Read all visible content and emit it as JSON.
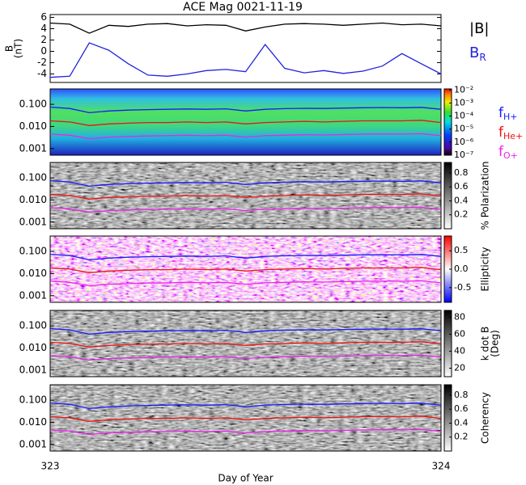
{
  "chart_data": [
    {
      "type": "line",
      "title": "ACE Mag 0021-11-19",
      "ylabel_lines": [
        "B",
        "(nT)"
      ],
      "x": [
        323,
        323.05,
        323.1,
        323.15,
        323.2,
        323.25,
        323.3,
        323.35,
        323.4,
        323.45,
        323.5,
        323.55,
        323.6,
        323.65,
        323.7,
        323.75,
        323.8,
        323.85,
        323.9,
        323.95,
        324
      ],
      "xlim": [
        323,
        324
      ],
      "ylim": [
        -5.5,
        6.5
      ],
      "yticks": [
        -4,
        -2,
        0,
        2,
        4,
        6
      ],
      "series": [
        {
          "name": "|B|",
          "color": "#000000",
          "values": [
            5,
            4.8,
            3.2,
            4.6,
            4.4,
            4.8,
            4.9,
            4.5,
            4.7,
            4.6,
            3.6,
            4.3,
            4.8,
            4.9,
            4.8,
            4.6,
            4.8,
            5,
            4.7,
            4.8,
            4.5
          ]
        },
        {
          "name": "B",
          "name_subscript": "R",
          "color": "#2222dd",
          "values": [
            -4.6,
            -4.4,
            1.5,
            0.2,
            -2.2,
            -4.2,
            -4.4,
            -4,
            -3.4,
            -3.2,
            -3.6,
            1.2,
            -3,
            -3.8,
            -3.4,
            -3.9,
            -3.5,
            -2.6,
            -0.4,
            -2.2,
            -4
          ]
        }
      ]
    },
    {
      "type": "spectrogram",
      "ylim": [
        0.0005,
        0.5
      ],
      "log_y": true,
      "yticks": [
        {
          "value": 0.001,
          "label": "0.001"
        },
        {
          "value": 0.01,
          "label": "0.010"
        },
        {
          "value": 0.1,
          "label": "0.100"
        }
      ],
      "clim": [
        1e-07,
        0.012
      ],
      "log_c": true,
      "cticks": [
        {
          "value": 0.01,
          "label": "10⁻²"
        },
        {
          "value": 0.001,
          "label": "10⁻³"
        },
        {
          "value": 0.0001,
          "label": "10⁻⁴"
        },
        {
          "value": 1e-05,
          "label": "10⁻⁵"
        },
        {
          "value": 1e-06,
          "label": "10⁻⁶"
        },
        {
          "value": 1e-07,
          "label": "10⁻⁷"
        }
      ],
      "series": [
        {
          "name": "f",
          "name_subscript": "H+",
          "color": "#1a1aff",
          "values": [
            0.075,
            0.065,
            0.042,
            0.05,
            0.055,
            0.058,
            0.06,
            0.062,
            0.06,
            0.063,
            0.05,
            0.06,
            0.064,
            0.066,
            0.065,
            0.068,
            0.07,
            0.072,
            0.07,
            0.073,
            0.06
          ]
        },
        {
          "name": "f",
          "name_subscript": "He+",
          "color": "#ee1111",
          "values": [
            0.018,
            0.016,
            0.011,
            0.013,
            0.014,
            0.015,
            0.015,
            0.016,
            0.015,
            0.016,
            0.013,
            0.015,
            0.016,
            0.017,
            0.016,
            0.017,
            0.018,
            0.018,
            0.018,
            0.019,
            0.015
          ]
        },
        {
          "name": "f",
          "name_subscript": "O+",
          "color": "#ee22ee",
          "values": [
            0.0045,
            0.004,
            0.0028,
            0.0033,
            0.0035,
            0.0037,
            0.0038,
            0.004,
            0.0038,
            0.004,
            0.0033,
            0.0038,
            0.004,
            0.0042,
            0.0041,
            0.0043,
            0.0045,
            0.0046,
            0.0045,
            0.0047,
            0.0038
          ]
        }
      ]
    },
    {
      "type": "spectrogram",
      "ylim": [
        0.0005,
        0.5
      ],
      "log_y": true,
      "yticks": [
        {
          "value": 0.001,
          "label": "0.001"
        },
        {
          "value": 0.01,
          "label": "0.010"
        },
        {
          "value": 0.1,
          "label": "0.100"
        }
      ],
      "colorbar_label": [
        "% Polarization"
      ],
      "clim": [
        0,
        0.95
      ],
      "cticks": [
        0.2,
        0.4,
        0.6,
        0.8
      ]
    },
    {
      "type": "spectrogram",
      "ylim": [
        0.0005,
        0.5
      ],
      "log_y": true,
      "yticks": [
        {
          "value": 0.001,
          "label": "0.001"
        },
        {
          "value": 0.01,
          "label": "0.010"
        },
        {
          "value": 0.1,
          "label": "0.100"
        }
      ],
      "colorbar_label": [
        "Ellipticity"
      ],
      "clim": [
        -0.9,
        0.9
      ],
      "cticks": [
        -0.5,
        {
          "value": 0,
          "label": "0.0"
        },
        0.5
      ]
    },
    {
      "type": "spectrogram",
      "ylim": [
        0.0005,
        0.5
      ],
      "log_y": true,
      "yticks": [
        {
          "value": 0.001,
          "label": "0.001"
        },
        {
          "value": 0.01,
          "label": "0.010"
        },
        {
          "value": 0.1,
          "label": "0.100"
        }
      ],
      "colorbar_label": [
        "k dot B",
        "(Deg)"
      ],
      "clim": [
        10,
        88
      ],
      "cticks": [
        20,
        40,
        60,
        80
      ]
    },
    {
      "type": "spectrogram",
      "ylim": [
        0.0005,
        0.5
      ],
      "log_y": true,
      "yticks": [
        {
          "value": 0.001,
          "label": "0.001"
        },
        {
          "value": 0.01,
          "label": "0.010"
        },
        {
          "value": 0.1,
          "label": "0.100"
        }
      ],
      "colorbar_label": [
        "Coherency"
      ],
      "clim": [
        0,
        0.95
      ],
      "cticks": [
        0.2,
        0.4,
        0.6,
        0.8
      ],
      "xlabel": "Day of Year",
      "xticks": [
        323,
        324
      ]
    }
  ]
}
